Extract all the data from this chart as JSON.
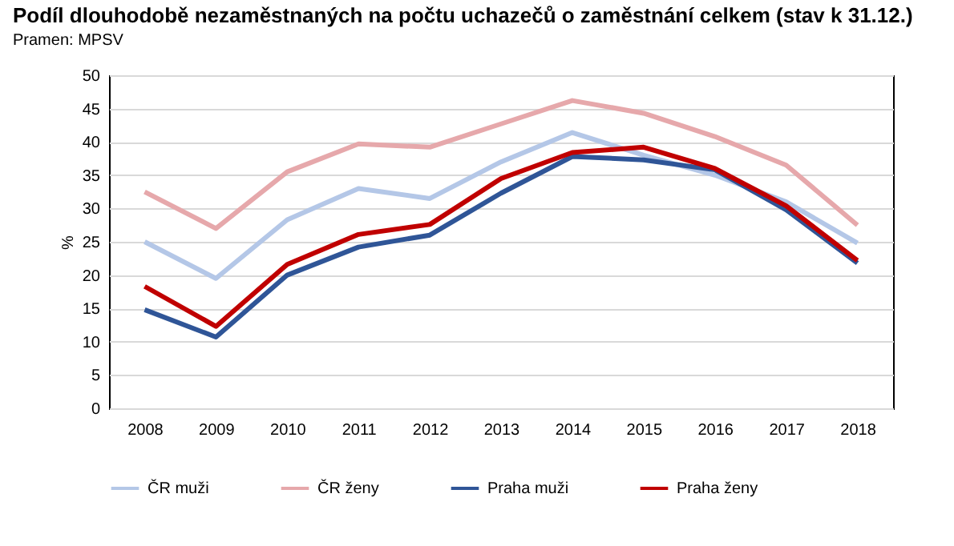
{
  "chart_data": {
    "type": "line",
    "title": "Podíl dlouhodobě nezaměstnaných na počtu uchazečů o zaměstnání celkem (stav k 31.12.)",
    "annotations": [
      "Pramen: MPSV"
    ],
    "ylabel": "%",
    "categories": [
      "2008",
      "2009",
      "2010",
      "2011",
      "2012",
      "2013",
      "2014",
      "2015",
      "2016",
      "2017",
      "2018"
    ],
    "series": [
      {
        "name": "ČR muži",
        "color": "#b4c7e7",
        "values": [
          25,
          19.5,
          28.3,
          33,
          31.5,
          37,
          41.4,
          38,
          35,
          31,
          24.8
        ]
      },
      {
        "name": "ČR ženy",
        "color": "#e6a8ab",
        "values": [
          32.5,
          27,
          35.5,
          39.7,
          39.2,
          42.7,
          46.2,
          44.3,
          40.8,
          36.5,
          27.5
        ]
      },
      {
        "name": "Praha muži",
        "color": "#2f5597",
        "values": [
          14.8,
          10.7,
          20,
          24.2,
          26,
          32.3,
          37.8,
          37.3,
          35.8,
          29.8,
          21.8
        ]
      },
      {
        "name": "Praha ženy",
        "color": "#c00000",
        "values": [
          18.3,
          12.3,
          21.6,
          26.1,
          27.6,
          34.5,
          38.4,
          39.2,
          36,
          30.4,
          22.2
        ]
      }
    ],
    "ylim": [
      0,
      50
    ],
    "yticks": [
      0,
      5,
      10,
      15,
      20,
      25,
      30,
      35,
      40,
      45,
      50
    ],
    "grid": "y",
    "legend": "bottom",
    "marker": "none",
    "line_style": "solid"
  }
}
